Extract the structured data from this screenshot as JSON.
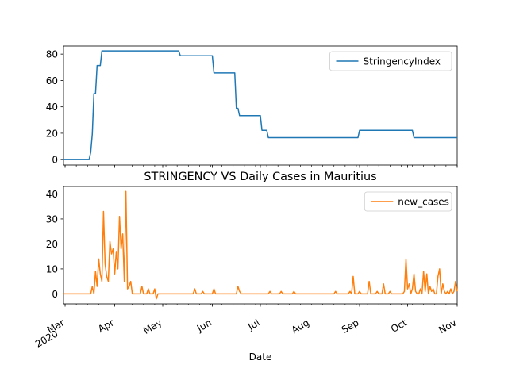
{
  "chart_data": [
    {
      "type": "line",
      "title": "",
      "xlabel": "",
      "ylabel": "",
      "xlim": [
        "2020-02-29",
        "2020-11-01"
      ],
      "ylim": [
        -4.1,
        86.1
      ],
      "yticks": [
        0,
        20,
        40,
        60,
        80
      ],
      "legend": "top-right",
      "series": [
        {
          "name": "StringencyIndex",
          "color": "#1f77b4",
          "points": [
            [
              "2020-02-29",
              0
            ],
            [
              "2020-03-16",
              0
            ],
            [
              "2020-03-17",
              5.56
            ],
            [
              "2020-03-18",
              19.44
            ],
            [
              "2020-03-19",
              50
            ],
            [
              "2020-03-20",
              50
            ],
            [
              "2020-03-21",
              71.3
            ],
            [
              "2020-03-23",
              71.3
            ],
            [
              "2020-03-24",
              82.41
            ],
            [
              "2020-05-11",
              82.41
            ],
            [
              "2020-05-12",
              78.7
            ],
            [
              "2020-06-01",
              78.7
            ],
            [
              "2020-06-02",
              65.74
            ],
            [
              "2020-06-15",
              65.74
            ],
            [
              "2020-06-16",
              38.89
            ],
            [
              "2020-06-17",
              38.89
            ],
            [
              "2020-06-18",
              33.33
            ],
            [
              "2020-07-01",
              33.33
            ],
            [
              "2020-07-02",
              22.22
            ],
            [
              "2020-07-05",
              22.22
            ],
            [
              "2020-07-06",
              16.67
            ],
            [
              "2020-08-31",
              16.67
            ],
            [
              "2020-09-01",
              22.22
            ],
            [
              "2020-10-04",
              22.22
            ],
            [
              "2020-10-05",
              16.67
            ],
            [
              "2020-11-01",
              16.67
            ]
          ]
        }
      ]
    },
    {
      "type": "line",
      "title": "STRINGENCY VS Daily Cases in Mauritius",
      "xlabel": "Date",
      "ylabel": "",
      "xlim": [
        "2020-02-29",
        "2020-11-01"
      ],
      "ylim": [
        -4,
        43
      ],
      "yticks": [
        0,
        10,
        20,
        30,
        40
      ],
      "xticks": [
        {
          "date": "2020-03-01",
          "label": "Mar",
          "sublabel": "2020"
        },
        {
          "date": "2020-04-01",
          "label": "Apr"
        },
        {
          "date": "2020-05-01",
          "label": "May"
        },
        {
          "date": "2020-06-01",
          "label": "Jun"
        },
        {
          "date": "2020-07-01",
          "label": "Jul"
        },
        {
          "date": "2020-08-01",
          "label": "Aug"
        },
        {
          "date": "2020-09-01",
          "label": "Sep"
        },
        {
          "date": "2020-10-01",
          "label": "Oct"
        },
        {
          "date": "2020-11-01",
          "label": "Nov"
        }
      ],
      "legend": "top-right",
      "series": [
        {
          "name": "new_cases",
          "color": "#ff7f0e",
          "points": [
            [
              "2020-02-29",
              0
            ],
            [
              "2020-03-17",
              0
            ],
            [
              "2020-03-18",
              3
            ],
            [
              "2020-03-19",
              0
            ],
            [
              "2020-03-20",
              9
            ],
            [
              "2020-03-21",
              3
            ],
            [
              "2020-03-22",
              14
            ],
            [
              "2020-03-23",
              8
            ],
            [
              "2020-03-24",
              5
            ],
            [
              "2020-03-25",
              33
            ],
            [
              "2020-03-26",
              12
            ],
            [
              "2020-03-27",
              7
            ],
            [
              "2020-03-28",
              5
            ],
            [
              "2020-03-29",
              21
            ],
            [
              "2020-03-30",
              16
            ],
            [
              "2020-03-31",
              18
            ],
            [
              "2020-04-01",
              8
            ],
            [
              "2020-04-02",
              17
            ],
            [
              "2020-04-03",
              10
            ],
            [
              "2020-04-04",
              31
            ],
            [
              "2020-04-05",
              18
            ],
            [
              "2020-04-06",
              24
            ],
            [
              "2020-04-07",
              5
            ],
            [
              "2020-04-08",
              41
            ],
            [
              "2020-04-09",
              2
            ],
            [
              "2020-04-10",
              3
            ],
            [
              "2020-04-11",
              5
            ],
            [
              "2020-04-12",
              0
            ],
            [
              "2020-04-17",
              0
            ],
            [
              "2020-04-18",
              3
            ],
            [
              "2020-04-19",
              0
            ],
            [
              "2020-04-21",
              0
            ],
            [
              "2020-04-22",
              2
            ],
            [
              "2020-04-23",
              0
            ],
            [
              "2020-04-25",
              0
            ],
            [
              "2020-04-26",
              2
            ],
            [
              "2020-04-27",
              -2
            ],
            [
              "2020-04-28",
              0
            ],
            [
              "2020-05-20",
              0
            ],
            [
              "2020-05-21",
              2
            ],
            [
              "2020-05-22",
              0
            ],
            [
              "2020-05-25",
              0
            ],
            [
              "2020-05-26",
              1
            ],
            [
              "2020-05-27",
              0
            ],
            [
              "2020-06-01",
              0
            ],
            [
              "2020-06-02",
              2
            ],
            [
              "2020-06-03",
              0
            ],
            [
              "2020-06-16",
              0
            ],
            [
              "2020-06-17",
              3
            ],
            [
              "2020-06-18",
              1
            ],
            [
              "2020-06-19",
              0
            ],
            [
              "2020-07-06",
              0
            ],
            [
              "2020-07-07",
              1
            ],
            [
              "2020-07-08",
              0
            ],
            [
              "2020-07-13",
              0
            ],
            [
              "2020-07-14",
              1
            ],
            [
              "2020-07-15",
              0
            ],
            [
              "2020-07-21",
              0
            ],
            [
              "2020-07-22",
              1
            ],
            [
              "2020-07-23",
              0
            ],
            [
              "2020-08-16",
              0
            ],
            [
              "2020-08-17",
              1
            ],
            [
              "2020-08-18",
              0
            ],
            [
              "2020-08-25",
              0
            ],
            [
              "2020-08-26",
              1
            ],
            [
              "2020-08-27",
              0
            ],
            [
              "2020-08-28",
              7
            ],
            [
              "2020-08-29",
              0
            ],
            [
              "2020-08-31",
              0
            ],
            [
              "2020-09-01",
              1
            ],
            [
              "2020-09-02",
              0
            ],
            [
              "2020-09-06",
              0
            ],
            [
              "2020-09-07",
              5
            ],
            [
              "2020-09-08",
              0
            ],
            [
              "2020-09-11",
              0
            ],
            [
              "2020-09-12",
              1
            ],
            [
              "2020-09-13",
              0
            ],
            [
              "2020-09-15",
              0
            ],
            [
              "2020-09-16",
              4
            ],
            [
              "2020-09-17",
              0
            ],
            [
              "2020-09-19",
              0
            ],
            [
              "2020-09-20",
              1
            ],
            [
              "2020-09-21",
              0
            ],
            [
              "2020-09-28",
              0
            ],
            [
              "2020-09-29",
              1
            ],
            [
              "2020-09-30",
              14
            ],
            [
              "2020-10-01",
              2
            ],
            [
              "2020-10-02",
              4
            ],
            [
              "2020-10-03",
              0
            ],
            [
              "2020-10-04",
              2
            ],
            [
              "2020-10-05",
              8
            ],
            [
              "2020-10-06",
              1
            ],
            [
              "2020-10-07",
              0
            ],
            [
              "2020-10-08",
              0
            ],
            [
              "2020-10-09",
              2
            ],
            [
              "2020-10-10",
              0
            ],
            [
              "2020-10-11",
              9
            ],
            [
              "2020-10-12",
              1
            ],
            [
              "2020-10-13",
              8
            ],
            [
              "2020-10-14",
              0
            ],
            [
              "2020-10-15",
              3
            ],
            [
              "2020-10-16",
              1
            ],
            [
              "2020-10-17",
              2
            ],
            [
              "2020-10-18",
              0
            ],
            [
              "2020-10-19",
              0
            ],
            [
              "2020-10-20",
              7
            ],
            [
              "2020-10-21",
              10
            ],
            [
              "2020-10-22",
              0
            ],
            [
              "2020-10-23",
              4
            ],
            [
              "2020-10-24",
              1
            ],
            [
              "2020-10-25",
              0
            ],
            [
              "2020-10-26",
              1
            ],
            [
              "2020-10-27",
              0
            ],
            [
              "2020-10-28",
              2
            ],
            [
              "2020-10-29",
              0
            ],
            [
              "2020-10-30",
              1
            ],
            [
              "2020-10-31",
              5
            ],
            [
              "2020-11-01",
              1
            ]
          ]
        }
      ]
    }
  ]
}
